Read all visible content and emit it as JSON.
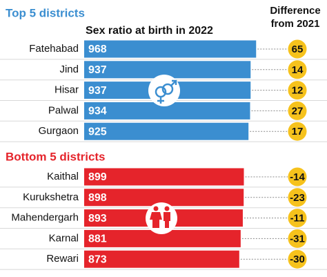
{
  "chart_data": {
    "type": "bar",
    "orientation": "horizontal",
    "title": "Sex ratio at birth in 2022",
    "difference_title": "Difference from 2021",
    "difference_color": "#f6c21c",
    "groups": [
      {
        "name": "Top 5 districts",
        "color": "#3b8ed0",
        "categories": [
          "Fatehabad",
          "Jind",
          "Hisar",
          "Palwal",
          "Gurgaon"
        ],
        "values": [
          968,
          937,
          937,
          934,
          925
        ],
        "differences": [
          65,
          14,
          12,
          27,
          17
        ]
      },
      {
        "name": "Bottom 5 districts",
        "color": "#e5242b",
        "categories": [
          "Kaithal",
          "Kurukshetra",
          "Mahendergarh",
          "Karnal",
          "Rewari"
        ],
        "values": [
          899,
          898,
          893,
          881,
          873
        ],
        "differences": [
          -14,
          -23,
          -11,
          -31,
          -30
        ]
      }
    ]
  }
}
